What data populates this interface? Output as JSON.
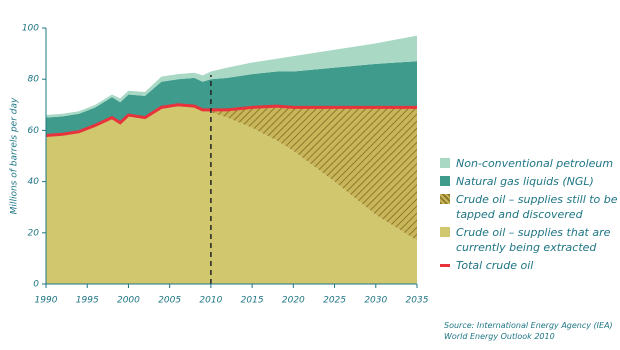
{
  "chart_data": {
    "type": "stacked-area",
    "y_label": "Millions of barrels per day",
    "x": [
      1990,
      1992,
      1994,
      1996,
      1998,
      1999,
      2000,
      2002,
      2004,
      2006,
      2008,
      2009,
      2010,
      2012,
      2015,
      2018,
      2020,
      2025,
      2030,
      2035
    ],
    "series": [
      {
        "name": "Crude oil – supplies that are currently being extracted",
        "color": "#d0c76f",
        "fill": "solid",
        "values": [
          58,
          58.5,
          59.5,
          62,
          65,
          63,
          66,
          65,
          69,
          70,
          69.5,
          68,
          67,
          65,
          61,
          56,
          52,
          40,
          27,
          17
        ]
      },
      {
        "name": "Crude oil – supplies still to be tapped and discovered",
        "color": "#b8a445",
        "fill": "hatch",
        "values": [
          0,
          0,
          0,
          0,
          0,
          0,
          0,
          0,
          0,
          0,
          0,
          0,
          1,
          3,
          8,
          13.5,
          17,
          29,
          42,
          52
        ]
      },
      {
        "name": "Natural gas liquids (NGL)",
        "color": "#3f9b8c",
        "fill": "solid",
        "values": [
          7,
          7,
          7,
          7,
          8,
          8,
          8,
          8.5,
          10,
          10,
          11,
          11,
          12,
          12.5,
          13,
          13.5,
          14,
          15.5,
          17,
          18
        ]
      },
      {
        "name": "Non-conventional petroleum",
        "color": "#a9d9c5",
        "fill": "solid",
        "values": [
          1,
          1,
          1,
          1,
          1,
          1.5,
          1.5,
          1.5,
          2,
          2,
          2,
          2.5,
          3,
          4,
          4.5,
          5,
          6,
          7,
          8,
          10
        ]
      }
    ],
    "line": {
      "name": "Total crude oil",
      "color": "#e8323c",
      "values": [
        58,
        58.5,
        59.5,
        62,
        65,
        63,
        66,
        65,
        69,
        70,
        69.5,
        68,
        68,
        68,
        69,
        69.5,
        69,
        69,
        69,
        69
      ]
    },
    "vline": 2010,
    "legend_order": [
      3,
      2,
      1,
      0
    ],
    "xlim": [
      1990,
      2035
    ],
    "xticks": [
      1990,
      1995,
      2000,
      2005,
      2010,
      2015,
      2020,
      2025,
      2030,
      2035
    ],
    "ylim": [
      0,
      100
    ],
    "yticks": [
      0,
      20,
      40,
      60,
      80,
      100
    ],
    "source": [
      "Source: International Energy Agency (IEA)",
      "World Energy Outlook 2010"
    ]
  }
}
